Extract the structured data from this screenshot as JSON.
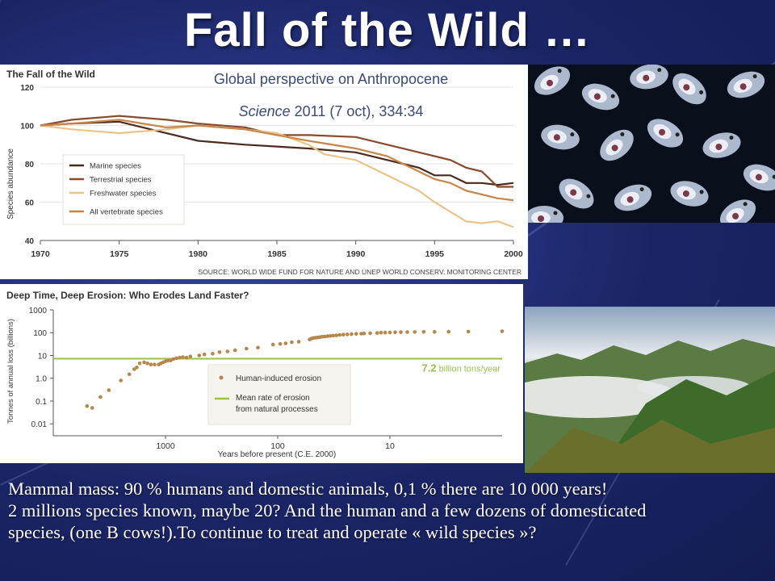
{
  "slide": {
    "title": "Fall of the Wild …",
    "reference_line1": "Global perspective on Anthropocene",
    "reference_journal": "Science",
    "reference_rest": " 2011 (7 oct), 334:34",
    "bottom_lines": [
      "Mammal mass: 90 % humans and domestic animals, 0,1 %  there  are 10 000 years!",
      "2 millions species known, maybe 20? And the human and a few dozens of domesticated",
      "species, (one B cows!).To continue to treat and operate « wild species »?"
    ]
  },
  "chart_data": [
    {
      "type": "line",
      "title": "The Fall of the Wild",
      "ylabel": "Species abundance",
      "xlabel": "",
      "source": "SOURCE: WORLD WIDE FUND FOR NATURE AND UNEP WORLD CONSERV. MONITORING CENTER",
      "xlim": [
        1970,
        2000
      ],
      "ylim": [
        40,
        120
      ],
      "x_ticks": [
        "1970",
        "1975",
        "1980",
        "1985",
        "1990",
        "1995",
        "2000"
      ],
      "y_ticks": [
        "40",
        "60",
        "80",
        "100",
        "120"
      ],
      "grid": true,
      "legend_position": "bottom-left",
      "series": [
        {
          "name": "Marine species",
          "color": "#4a2a1e",
          "points": [
            [
              1970,
              100
            ],
            [
              1972,
              101
            ],
            [
              1975,
              102
            ],
            [
              1977,
              98
            ],
            [
              1980,
              92
            ],
            [
              1983,
              90
            ],
            [
              1985,
              89
            ],
            [
              1987,
              88
            ],
            [
              1990,
              86
            ],
            [
              1992,
              82
            ],
            [
              1994,
              78
            ],
            [
              1995,
              74
            ],
            [
              1996,
              74
            ],
            [
              1997,
              70
            ],
            [
              1998,
              70
            ],
            [
              1999,
              69
            ],
            [
              2000,
              70
            ]
          ]
        },
        {
          "name": "Terrestrial species",
          "color": "#8a4a2c",
          "points": [
            [
              1970,
              100
            ],
            [
              1972,
              103
            ],
            [
              1975,
              105
            ],
            [
              1978,
              103
            ],
            [
              1980,
              101
            ],
            [
              1983,
              99
            ],
            [
              1985,
              95
            ],
            [
              1987,
              95
            ],
            [
              1990,
              94
            ],
            [
              1992,
              90
            ],
            [
              1994,
              86
            ],
            [
              1995,
              84
            ],
            [
              1996,
              82
            ],
            [
              1997,
              78
            ],
            [
              1998,
              76
            ],
            [
              1999,
              68
            ],
            [
              2000,
              68
            ]
          ]
        },
        {
          "name": "Freshwater species",
          "color": "#e8c48a",
          "points": [
            [
              1970,
              100
            ],
            [
              1972,
              98
            ],
            [
              1975,
              96
            ],
            [
              1978,
              98
            ],
            [
              1980,
              100
            ],
            [
              1983,
              98
            ],
            [
              1985,
              96
            ],
            [
              1987,
              90
            ],
            [
              1988,
              85
            ],
            [
              1990,
              82
            ],
            [
              1992,
              74
            ],
            [
              1994,
              66
            ],
            [
              1995,
              60
            ],
            [
              1996,
              55
            ],
            [
              1997,
              50
            ],
            [
              1998,
              49
            ],
            [
              1999,
              50
            ],
            [
              2000,
              47
            ]
          ]
        },
        {
          "name": "All vertebrate species",
          "color": "#c8864a",
          "points": [
            [
              1970,
              100
            ],
            [
              1972,
              101
            ],
            [
              1975,
              103
            ],
            [
              1978,
              99
            ],
            [
              1980,
              100
            ],
            [
              1983,
              98
            ],
            [
              1985,
              95
            ],
            [
              1987,
              92
            ],
            [
              1990,
              88
            ],
            [
              1992,
              84
            ],
            [
              1994,
              76
            ],
            [
              1995,
              72
            ],
            [
              1996,
              70
            ],
            [
              1997,
              66
            ],
            [
              1998,
              64
            ],
            [
              1999,
              62
            ],
            [
              2000,
              61
            ]
          ]
        }
      ]
    },
    {
      "type": "scatter",
      "title": "Deep Time, Deep Erosion: Who Erodes Land Faster?",
      "ylabel": "Tonnes of annual loss (billions)",
      "xlabel": "Years before present (C.E. 2000)",
      "x_scale": "log-reversed",
      "y_scale": "log",
      "x_ticks": [
        "1000",
        "100",
        "10"
      ],
      "y_ticks": [
        "1000",
        "100",
        "10",
        "1.0",
        "0.1",
        "0.01"
      ],
      "legend_position": "bottom-center",
      "legend": [
        "Human-induced erosion",
        "Mean rate of erosion from natural processes"
      ],
      "reference_line": {
        "value": 7.2,
        "label_value": "7.2",
        "label_unit": "billion tons/year",
        "color": "#9ac24a"
      },
      "series": [
        {
          "name": "Human-induced erosion",
          "color": "#b8864a",
          "points": [
            [
              5000,
              0.06
            ],
            [
              4500,
              0.05
            ],
            [
              3800,
              0.15
            ],
            [
              3200,
              0.3
            ],
            [
              2500,
              0.8
            ],
            [
              2100,
              1.5
            ],
            [
              1900,
              2.5
            ],
            [
              1800,
              3
            ],
            [
              1700,
              4.5
            ],
            [
              1550,
              5
            ],
            [
              1450,
              4.5
            ],
            [
              1350,
              4
            ],
            [
              1250,
              4
            ],
            [
              1150,
              4
            ],
            [
              1100,
              4.5
            ],
            [
              1050,
              5
            ],
            [
              1000,
              5.5
            ],
            [
              950,
              6
            ],
            [
              900,
              6
            ],
            [
              850,
              7
            ],
            [
              800,
              7.5
            ],
            [
              750,
              8
            ],
            [
              700,
              8.5
            ],
            [
              650,
              8
            ],
            [
              600,
              9
            ],
            [
              500,
              10
            ],
            [
              450,
              11
            ],
            [
              380,
              12
            ],
            [
              330,
              14
            ],
            [
              280,
              15
            ],
            [
              240,
              17
            ],
            [
              190,
              20
            ],
            [
              150,
              22
            ],
            [
              110,
              30
            ],
            [
              95,
              32
            ],
            [
              85,
              34
            ],
            [
              75,
              38
            ],
            [
              65,
              40
            ],
            [
              52,
              50
            ],
            [
              50,
              55
            ],
            [
              48,
              58
            ],
            [
              46,
              60
            ],
            [
              44,
              62
            ],
            [
              42,
              64
            ],
            [
              40,
              66
            ],
            [
              38,
              68
            ],
            [
              36,
              70
            ],
            [
              34,
              72
            ],
            [
              32,
              74
            ],
            [
              30,
              76
            ],
            [
              28,
              80
            ],
            [
              26,
              82
            ],
            [
              24,
              84
            ],
            [
              22,
              86
            ],
            [
              20,
              88
            ],
            [
              18,
              90
            ],
            [
              17,
              92
            ],
            [
              15,
              95
            ],
            [
              13,
              97
            ],
            [
              12,
              100
            ],
            [
              11,
              100
            ],
            [
              10,
              102
            ],
            [
              9,
              104
            ],
            [
              8,
              105
            ],
            [
              7,
              106
            ],
            [
              6,
              107
            ],
            [
              5,
              108
            ],
            [
              4,
              108
            ],
            [
              3,
              110
            ],
            [
              2,
              112
            ],
            [
              1,
              115
            ]
          ]
        }
      ]
    }
  ]
}
